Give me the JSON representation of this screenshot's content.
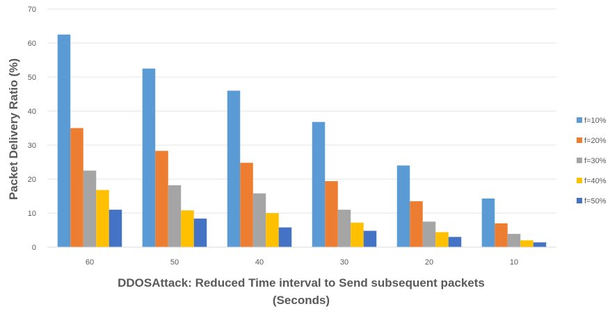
{
  "chart_data": {
    "type": "bar",
    "title": "",
    "xlabel_line1": "DDOSAttack: Reduced Time interval to Send subsequent packets",
    "xlabel_line2": "(Seconds)",
    "ylabel": "Packet Delivery Ratio (%)",
    "ylim": [
      0,
      70
    ],
    "yticks": [
      0,
      10,
      20,
      30,
      40,
      50,
      60,
      70
    ],
    "grid": true,
    "legend_position": "right",
    "categories": [
      "60",
      "50",
      "40",
      "30",
      "20",
      "10"
    ],
    "series": [
      {
        "name": "f=10%",
        "color": "#5b9bd5",
        "values": [
          62.5,
          52.5,
          46,
          36.8,
          24,
          14.3
        ]
      },
      {
        "name": "f=20%",
        "color": "#ed7d31",
        "values": [
          35,
          28.3,
          24.8,
          19.4,
          13.5,
          7
        ]
      },
      {
        "name": "f=30%",
        "color": "#a5a5a5",
        "values": [
          22.5,
          18.2,
          15.8,
          11,
          7.5,
          3.9
        ]
      },
      {
        "name": "f=40%",
        "color": "#ffc000",
        "values": [
          16.8,
          10.8,
          10,
          7.2,
          4.4,
          2
        ]
      },
      {
        "name": "f=50%",
        "color": "#4472c4",
        "values": [
          11,
          8.4,
          5.8,
          4.8,
          3,
          1.4
        ]
      }
    ]
  }
}
